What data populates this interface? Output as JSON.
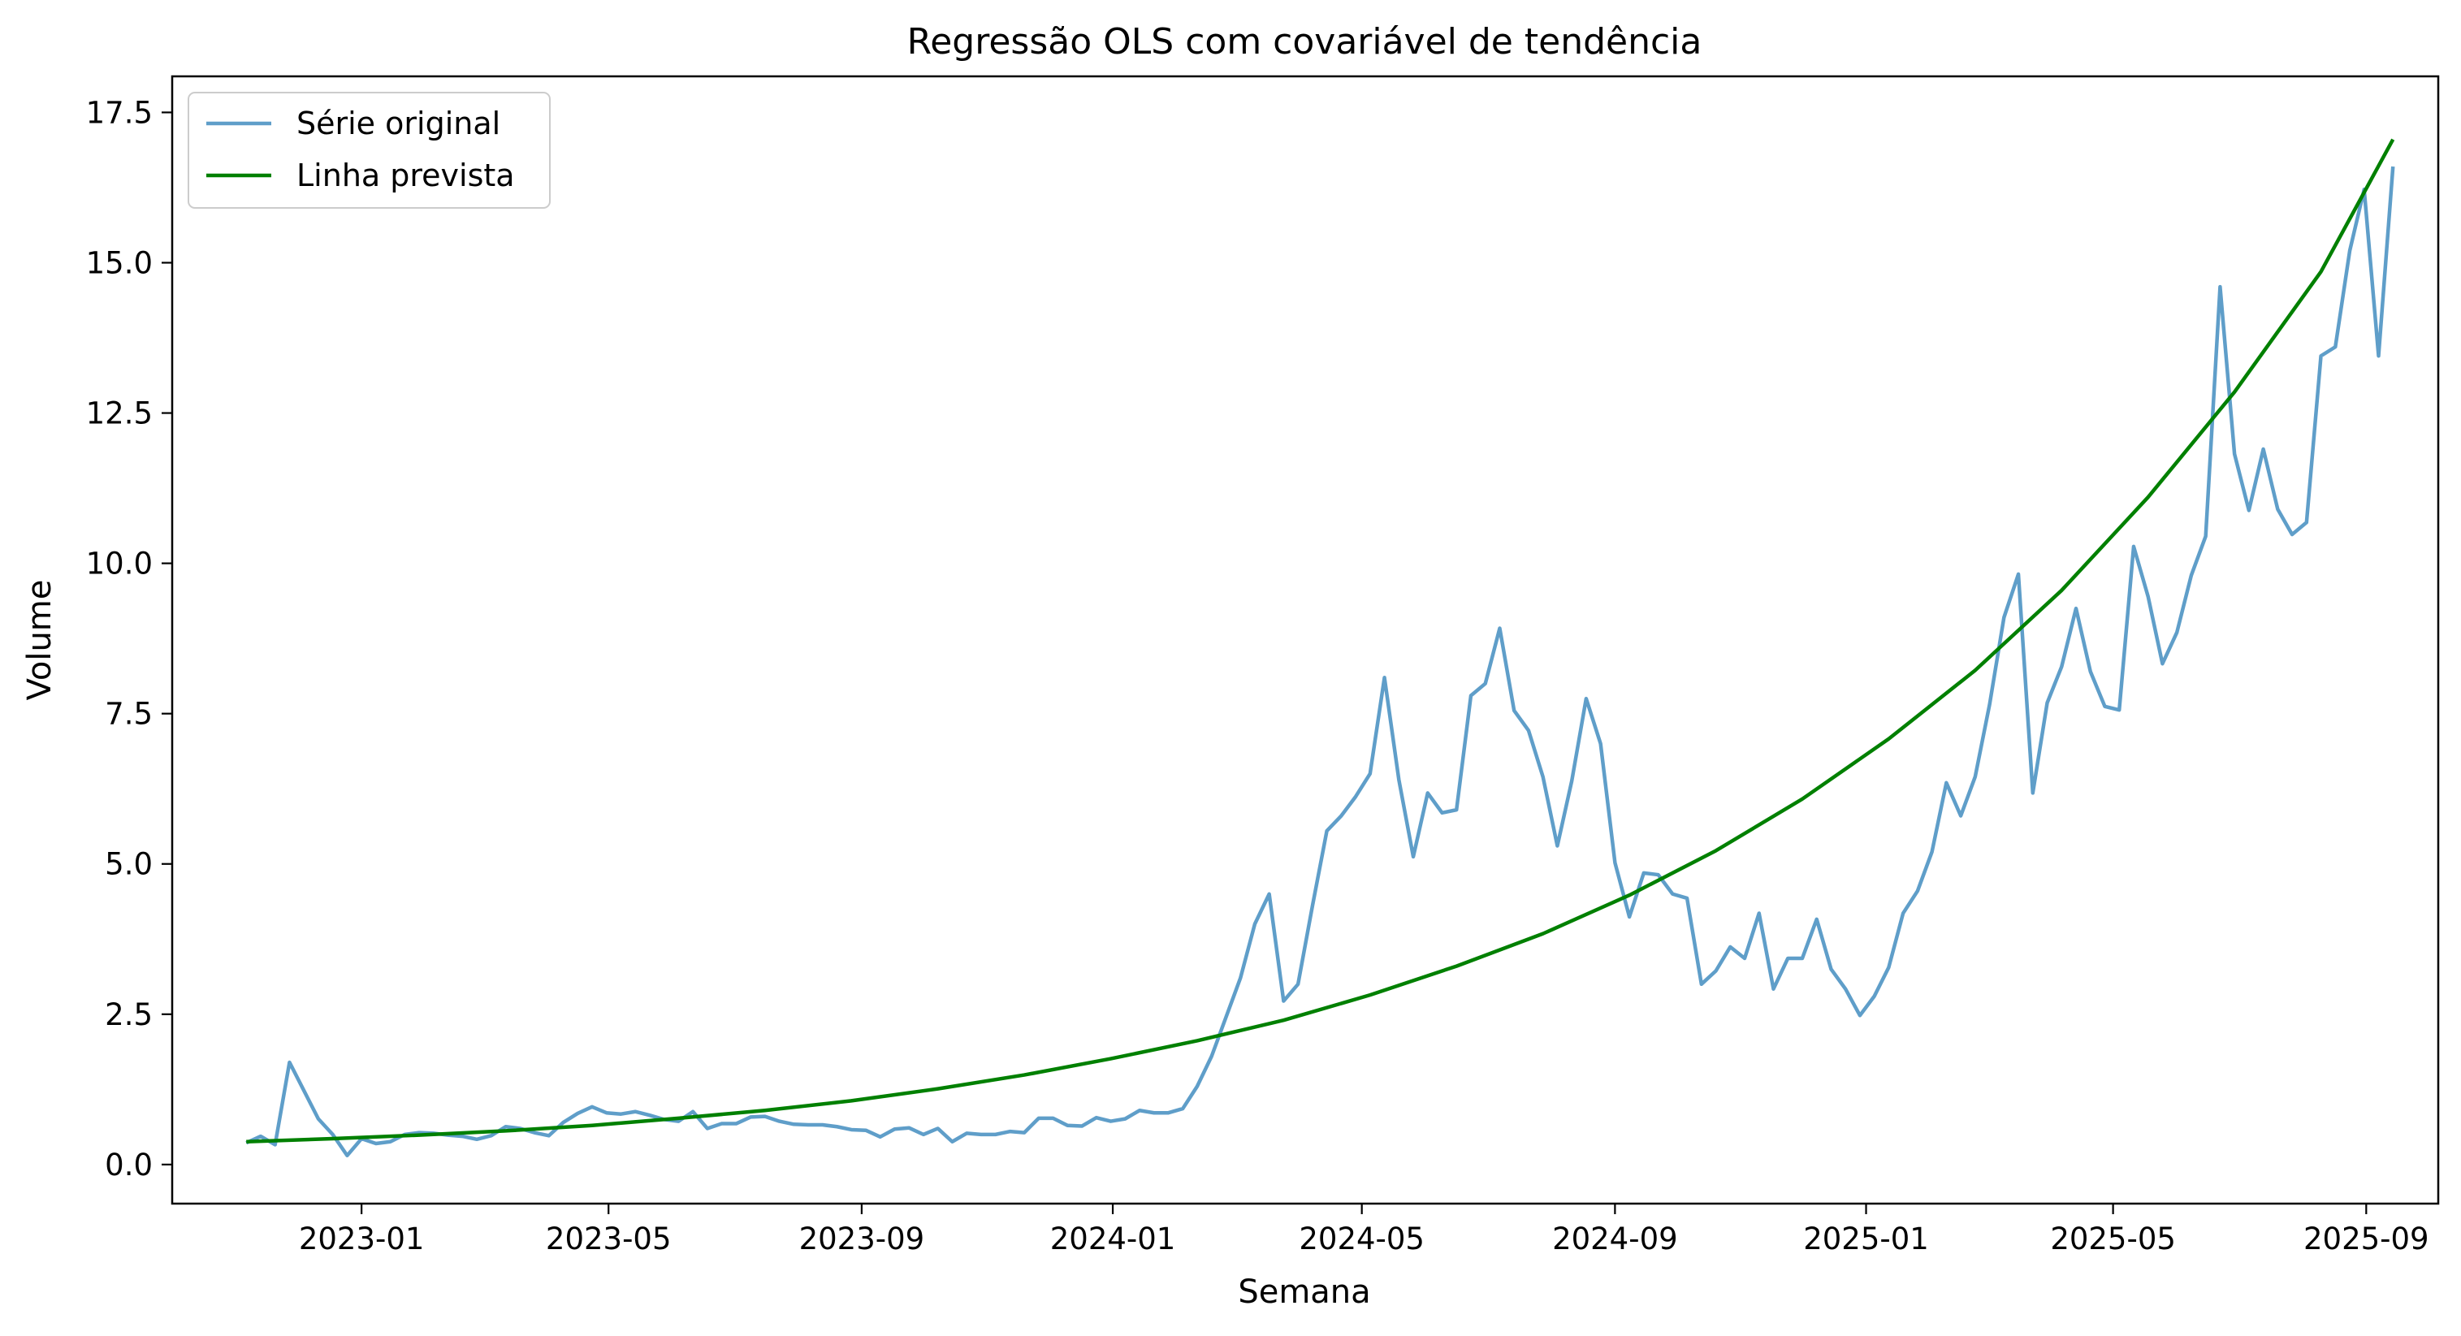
{
  "chart_data": {
    "type": "line",
    "title": "Regressão OLS com covariável de tendência",
    "xlabel": "Semana",
    "ylabel": "Volume",
    "xlim": [
      "2022-10-01",
      "2025-10-06"
    ],
    "ylim": [
      -0.65,
      18.1
    ],
    "xticks": [
      "2023-01",
      "2023-05",
      "2023-09",
      "2024-01",
      "2024-05",
      "2024-09",
      "2025-01",
      "2025-05",
      "2025-09"
    ],
    "yticks": [
      "0.0",
      "2.5",
      "5.0",
      "7.5",
      "10.0",
      "12.5",
      "15.0",
      "17.5"
    ],
    "grid": false,
    "legend_position": "top-left",
    "series": [
      {
        "name": "Série original",
        "color": "#5f9ec9",
        "style": "line",
        "points": [
          [
            "2022-11-06",
            0.36
          ],
          [
            "2022-11-13",
            0.47
          ],
          [
            "2022-11-20",
            0.33
          ],
          [
            "2022-11-27",
            1.7
          ],
          [
            "2022-12-04",
            1.23
          ],
          [
            "2022-12-11",
            0.76
          ],
          [
            "2022-12-18",
            0.5
          ],
          [
            "2022-12-25",
            0.15
          ],
          [
            "2023-01-01",
            0.43
          ],
          [
            "2023-01-08",
            0.35
          ],
          [
            "2023-01-15",
            0.38
          ],
          [
            "2023-01-22",
            0.5
          ],
          [
            "2023-01-29",
            0.53
          ],
          [
            "2023-02-05",
            0.52
          ],
          [
            "2023-02-12",
            0.49
          ],
          [
            "2023-02-19",
            0.47
          ],
          [
            "2023-02-26",
            0.42
          ],
          [
            "2023-03-05",
            0.48
          ],
          [
            "2023-03-12",
            0.63
          ],
          [
            "2023-03-19",
            0.6
          ],
          [
            "2023-03-26",
            0.53
          ],
          [
            "2023-04-02",
            0.48
          ],
          [
            "2023-04-09",
            0.7
          ],
          [
            "2023-04-16",
            0.85
          ],
          [
            "2023-04-23",
            0.96
          ],
          [
            "2023-04-30",
            0.86
          ],
          [
            "2023-05-07",
            0.84
          ],
          [
            "2023-05-14",
            0.88
          ],
          [
            "2023-05-21",
            0.82
          ],
          [
            "2023-05-28",
            0.75
          ],
          [
            "2023-06-04",
            0.72
          ],
          [
            "2023-06-11",
            0.88
          ],
          [
            "2023-06-18",
            0.6
          ],
          [
            "2023-06-25",
            0.68
          ],
          [
            "2023-07-02",
            0.68
          ],
          [
            "2023-07-09",
            0.79
          ],
          [
            "2023-07-16",
            0.8
          ],
          [
            "2023-07-23",
            0.72
          ],
          [
            "2023-07-30",
            0.67
          ],
          [
            "2023-08-06",
            0.66
          ],
          [
            "2023-08-13",
            0.66
          ],
          [
            "2023-08-20",
            0.63
          ],
          [
            "2023-08-27",
            0.58
          ],
          [
            "2023-09-03",
            0.57
          ],
          [
            "2023-09-10",
            0.46
          ],
          [
            "2023-09-17",
            0.59
          ],
          [
            "2023-09-24",
            0.61
          ],
          [
            "2023-10-01",
            0.5
          ],
          [
            "2023-10-08",
            0.6
          ],
          [
            "2023-10-15",
            0.38
          ],
          [
            "2023-10-22",
            0.52
          ],
          [
            "2023-10-29",
            0.5
          ],
          [
            "2023-11-05",
            0.5
          ],
          [
            "2023-11-12",
            0.55
          ],
          [
            "2023-11-19",
            0.53
          ],
          [
            "2023-11-26",
            0.77
          ],
          [
            "2023-12-03",
            0.77
          ],
          [
            "2023-12-10",
            0.65
          ],
          [
            "2023-12-17",
            0.64
          ],
          [
            "2023-12-24",
            0.78
          ],
          [
            "2023-12-31",
            0.72
          ],
          [
            "2024-01-07",
            0.76
          ],
          [
            "2024-01-14",
            0.9
          ],
          [
            "2024-01-21",
            0.86
          ],
          [
            "2024-01-28",
            0.86
          ],
          [
            "2024-02-04",
            0.93
          ],
          [
            "2024-02-11",
            1.3
          ],
          [
            "2024-02-18",
            1.8
          ],
          [
            "2024-02-25",
            2.45
          ],
          [
            "2024-03-03",
            3.1
          ],
          [
            "2024-03-10",
            4.0
          ],
          [
            "2024-03-17",
            4.5
          ],
          [
            "2024-03-24",
            2.72
          ],
          [
            "2024-03-31",
            3.0
          ],
          [
            "2024-04-07",
            4.3
          ],
          [
            "2024-04-14",
            5.55
          ],
          [
            "2024-04-21",
            5.8
          ],
          [
            "2024-04-28",
            6.12
          ],
          [
            "2024-05-05",
            6.5
          ],
          [
            "2024-05-12",
            8.1
          ],
          [
            "2024-05-19",
            6.4
          ],
          [
            "2024-05-26",
            5.12
          ],
          [
            "2024-06-02",
            6.18
          ],
          [
            "2024-06-09",
            5.85
          ],
          [
            "2024-06-16",
            5.9
          ],
          [
            "2024-06-23",
            7.8
          ],
          [
            "2024-06-30",
            8.0
          ],
          [
            "2024-07-07",
            8.92
          ],
          [
            "2024-07-14",
            7.55
          ],
          [
            "2024-07-21",
            7.22
          ],
          [
            "2024-07-28",
            6.45
          ],
          [
            "2024-08-04",
            5.3
          ],
          [
            "2024-08-11",
            6.38
          ],
          [
            "2024-08-18",
            7.75
          ],
          [
            "2024-08-25",
            7.0
          ],
          [
            "2024-09-01",
            5.02
          ],
          [
            "2024-09-08",
            4.12
          ],
          [
            "2024-09-15",
            4.85
          ],
          [
            "2024-09-22",
            4.82
          ],
          [
            "2024-09-29",
            4.5
          ],
          [
            "2024-10-06",
            4.43
          ],
          [
            "2024-10-13",
            3.0
          ],
          [
            "2024-10-20",
            3.22
          ],
          [
            "2024-10-27",
            3.62
          ],
          [
            "2024-11-03",
            3.43
          ],
          [
            "2024-11-10",
            4.18
          ],
          [
            "2024-11-17",
            2.92
          ],
          [
            "2024-11-24",
            3.43
          ],
          [
            "2024-12-01",
            3.43
          ],
          [
            "2024-12-08",
            4.08
          ],
          [
            "2024-12-15",
            3.25
          ],
          [
            "2024-12-22",
            2.92
          ],
          [
            "2024-12-29",
            2.48
          ],
          [
            "2025-01-05",
            2.8
          ],
          [
            "2025-01-12",
            3.28
          ],
          [
            "2025-01-19",
            4.18
          ],
          [
            "2025-01-26",
            4.55
          ],
          [
            "2025-02-02",
            5.2
          ],
          [
            "2025-02-09",
            6.35
          ],
          [
            "2025-02-16",
            5.8
          ],
          [
            "2025-02-23",
            6.45
          ],
          [
            "2025-03-02",
            7.65
          ],
          [
            "2025-03-09",
            9.1
          ],
          [
            "2025-03-16",
            9.82
          ],
          [
            "2025-03-23",
            6.18
          ],
          [
            "2025-03-30",
            7.68
          ],
          [
            "2025-04-06",
            8.28
          ],
          [
            "2025-04-13",
            9.25
          ],
          [
            "2025-04-20",
            8.2
          ],
          [
            "2025-04-27",
            7.62
          ],
          [
            "2025-05-04",
            7.56
          ],
          [
            "2025-05-11",
            10.28
          ],
          [
            "2025-05-18",
            9.45
          ],
          [
            "2025-05-25",
            8.33
          ],
          [
            "2025-06-01",
            8.85
          ],
          [
            "2025-06-08",
            9.8
          ],
          [
            "2025-06-15",
            10.45
          ],
          [
            "2025-06-22",
            14.6
          ],
          [
            "2025-06-29",
            11.82
          ],
          [
            "2025-07-06",
            10.88
          ],
          [
            "2025-07-13",
            11.9
          ],
          [
            "2025-07-20",
            10.9
          ],
          [
            "2025-07-27",
            10.48
          ],
          [
            "2025-08-03",
            10.68
          ],
          [
            "2025-08-10",
            13.45
          ],
          [
            "2025-08-17",
            13.6
          ],
          [
            "2025-08-24",
            15.2
          ],
          [
            "2025-08-31",
            16.22
          ],
          [
            "2025-09-07",
            13.45
          ],
          [
            "2025-09-14",
            16.6
          ]
        ]
      },
      {
        "name": "Linha prevista",
        "color": "#008000",
        "style": "line",
        "points": [
          [
            "2022-11-06",
            0.38
          ],
          [
            "2022-12-18",
            0.43
          ],
          [
            "2023-01-29",
            0.49
          ],
          [
            "2023-03-12",
            0.56
          ],
          [
            "2023-04-23",
            0.65
          ],
          [
            "2023-06-04",
            0.77
          ],
          [
            "2023-07-16",
            0.9
          ],
          [
            "2023-08-27",
            1.06
          ],
          [
            "2023-10-08",
            1.26
          ],
          [
            "2023-11-19",
            1.49
          ],
          [
            "2023-12-31",
            1.76
          ],
          [
            "2024-02-11",
            2.06
          ],
          [
            "2024-03-24",
            2.4
          ],
          [
            "2024-05-05",
            2.82
          ],
          [
            "2024-06-16",
            3.3
          ],
          [
            "2024-07-28",
            3.84
          ],
          [
            "2024-09-08",
            4.48
          ],
          [
            "2024-10-20",
            5.22
          ],
          [
            "2024-12-01",
            6.08
          ],
          [
            "2025-01-12",
            7.08
          ],
          [
            "2025-02-23",
            8.22
          ],
          [
            "2025-04-06",
            9.55
          ],
          [
            "2025-05-18",
            11.1
          ],
          [
            "2025-06-29",
            12.85
          ],
          [
            "2025-08-10",
            14.85
          ],
          [
            "2025-09-14",
            17.05
          ]
        ]
      }
    ]
  }
}
